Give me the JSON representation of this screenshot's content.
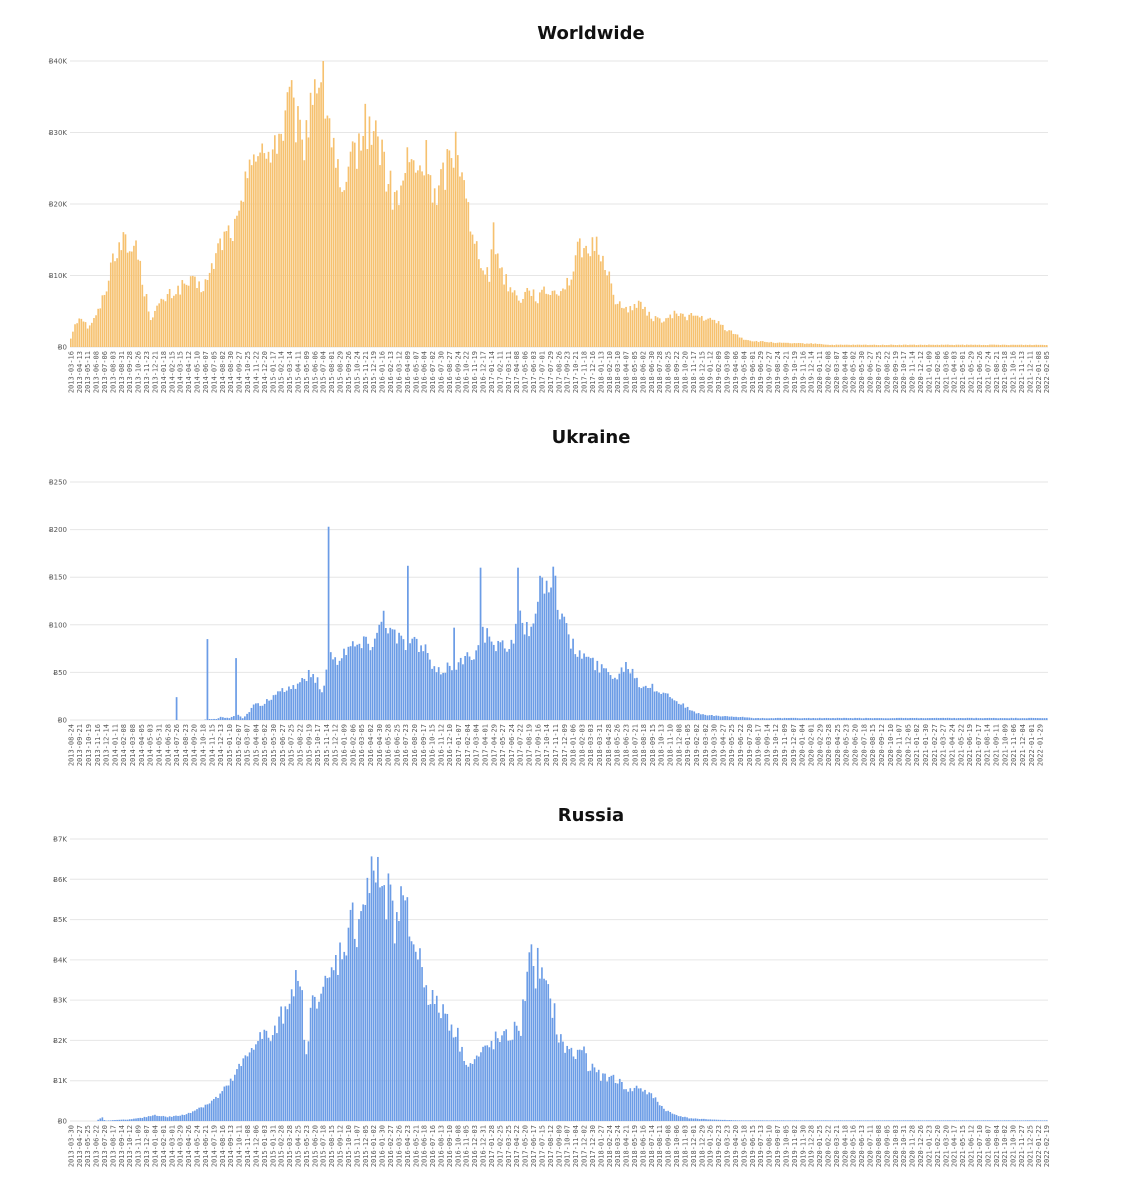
{
  "chart_data": [
    {
      "type": "bar",
      "title": "Worldwide",
      "xlabel": "",
      "ylabel": "",
      "ylim": [
        0,
        40000
      ],
      "yticks": [
        "Ƀ0",
        "Ƀ10K",
        "Ƀ20K",
        "Ƀ30K",
        "Ƀ40K"
      ],
      "color": "#f6c16f",
      "start_date": "2013-03-16",
      "end_date": "2022-02-05",
      "xtick_every_weeks": 4,
      "profile": [
        [
          0,
          1200
        ],
        [
          2,
          3400
        ],
        [
          5,
          4300
        ],
        [
          8,
          2800
        ],
        [
          12,
          4200
        ],
        [
          16,
          7400
        ],
        [
          20,
          12500
        ],
        [
          24,
          15300
        ],
        [
          28,
          13200
        ],
        [
          31,
          14700
        ],
        [
          34,
          9200
        ],
        [
          38,
          4200
        ],
        [
          42,
          5800
        ],
        [
          46,
          7100
        ],
        [
          50,
          7800
        ],
        [
          54,
          8700
        ],
        [
          58,
          9000
        ],
        [
          62,
          8200
        ],
        [
          66,
          9800
        ],
        [
          70,
          13800
        ],
        [
          74,
          15900
        ],
        [
          78,
          16500
        ],
        [
          82,
          19500
        ],
        [
          84,
          25200
        ],
        [
          86,
          28800
        ],
        [
          88,
          27200
        ],
        [
          92,
          25800
        ],
        [
          96,
          29000
        ],
        [
          100,
          29500
        ],
        [
          104,
          34300
        ],
        [
          107,
          31500
        ],
        [
          110,
          27300
        ],
        [
          114,
          34200
        ],
        [
          117,
          38600
        ],
        [
          120,
          36200
        ],
        [
          123,
          31500
        ],
        [
          126,
          26300
        ],
        [
          128,
          21200
        ],
        [
          131,
          20800
        ],
        [
          134,
          26800
        ],
        [
          138,
          29300
        ],
        [
          142,
          31600
        ],
        [
          145,
          29200
        ],
        [
          148,
          27800
        ],
        [
          150,
          23800
        ],
        [
          153,
          21200
        ],
        [
          156,
          20300
        ],
        [
          158,
          23400
        ],
        [
          160,
          25800
        ],
        [
          163,
          25000
        ],
        [
          167,
          24900
        ],
        [
          170,
          26800
        ],
        [
          172,
          21800
        ],
        [
          174,
          19900
        ],
        [
          177,
          24200
        ],
        [
          180,
          26100
        ],
        [
          183,
          28400
        ],
        [
          186,
          25800
        ],
        [
          188,
          22900
        ],
        [
          190,
          15600
        ],
        [
          193,
          13900
        ],
        [
          196,
          11800
        ],
        [
          199,
          10100
        ],
        [
          201,
          15700
        ],
        [
          203,
          12800
        ],
        [
          206,
          9800
        ],
        [
          210,
          7800
        ],
        [
          214,
          6800
        ],
        [
          218,
          8300
        ],
        [
          222,
          6800
        ],
        [
          226,
          7800
        ],
        [
          230,
          7700
        ],
        [
          234,
          8400
        ],
        [
          238,
          9800
        ],
        [
          240,
          11800
        ],
        [
          242,
          14600
        ],
        [
          244,
          13800
        ],
        [
          246,
          11700
        ],
        [
          248,
          14700
        ],
        [
          250,
          14100
        ],
        [
          252,
          13200
        ],
        [
          255,
          11100
        ],
        [
          258,
          7200
        ],
        [
          262,
          5300
        ],
        [
          266,
          5500
        ],
        [
          270,
          6100
        ],
        [
          274,
          4700
        ],
        [
          278,
          3900
        ],
        [
          282,
          3800
        ],
        [
          286,
          4200
        ],
        [
          288,
          4900
        ],
        [
          292,
          4200
        ],
        [
          296,
          4400
        ],
        [
          300,
          4100
        ],
        [
          304,
          3700
        ],
        [
          308,
          3400
        ],
        [
          312,
          2400
        ],
        [
          316,
          1800
        ],
        [
          320,
          1100
        ],
        [
          325,
          800
        ],
        [
          331,
          700
        ],
        [
          338,
          550
        ],
        [
          356,
          450
        ],
        [
          360,
          300
        ]
      ]
    },
    {
      "type": "bar",
      "title": "Ukraine",
      "xlabel": "",
      "ylabel": "",
      "ylim": [
        0,
        250
      ],
      "yticks": [
        "Ƀ0",
        "Ƀ50",
        "Ƀ100",
        "Ƀ150",
        "Ƀ200",
        "Ƀ250"
      ],
      "color": "#6b9ce6",
      "start_date": "2013-08-24",
      "end_date": "2022-02-19",
      "xtick_every_weeks": 4,
      "spikes": [
        [
          48,
          24
        ],
        [
          62,
          85
        ],
        [
          75,
          65
        ],
        [
          117,
          203
        ],
        [
          153,
          162
        ],
        [
          174,
          97
        ],
        [
          186,
          160
        ],
        [
          203,
          160
        ]
      ],
      "profile": [
        [
          0,
          0
        ],
        [
          60,
          0
        ],
        [
          62,
          1
        ],
        [
          66,
          1
        ],
        [
          68,
          3
        ],
        [
          72,
          2
        ],
        [
          74,
          4
        ],
        [
          76,
          6
        ],
        [
          78,
          2
        ],
        [
          80,
          6
        ],
        [
          82,
          12
        ],
        [
          84,
          18
        ],
        [
          86,
          14
        ],
        [
          90,
          22
        ],
        [
          94,
          27
        ],
        [
          98,
          33
        ],
        [
          102,
          36
        ],
        [
          106,
          44
        ],
        [
          108,
          48
        ],
        [
          112,
          42
        ],
        [
          114,
          28
        ],
        [
          116,
          52
        ],
        [
          118,
          68
        ],
        [
          120,
          62
        ],
        [
          124,
          75
        ],
        [
          128,
          78
        ],
        [
          132,
          80
        ],
        [
          136,
          82
        ],
        [
          140,
          96
        ],
        [
          142,
          115
        ],
        [
          145,
          95
        ],
        [
          148,
          88
        ],
        [
          150,
          83
        ],
        [
          154,
          84
        ],
        [
          158,
          78
        ],
        [
          162,
          70
        ],
        [
          164,
          55
        ],
        [
          166,
          48
        ],
        [
          170,
          55
        ],
        [
          174,
          58
        ],
        [
          176,
          60
        ],
        [
          180,
          65
        ],
        [
          183,
          72
        ],
        [
          186,
          95
        ],
        [
          190,
          85
        ],
        [
          192,
          78
        ],
        [
          196,
          75
        ],
        [
          200,
          80
        ],
        [
          202,
          100
        ],
        [
          205,
          110
        ],
        [
          208,
          85
        ],
        [
          210,
          95
        ],
        [
          212,
          138
        ],
        [
          215,
          148
        ],
        [
          217,
          152
        ],
        [
          220,
          140
        ],
        [
          222,
          120
        ],
        [
          224,
          100
        ],
        [
          226,
          88
        ],
        [
          229,
          72
        ],
        [
          233,
          68
        ],
        [
          236,
          62
        ],
        [
          240,
          55
        ],
        [
          243,
          52
        ],
        [
          246,
          49
        ],
        [
          248,
          45
        ],
        [
          252,
          60
        ],
        [
          255,
          52
        ],
        [
          258,
          38
        ],
        [
          262,
          36
        ],
        [
          266,
          32
        ],
        [
          270,
          28
        ],
        [
          274,
          22
        ],
        [
          278,
          16
        ],
        [
          282,
          9
        ],
        [
          286,
          6
        ],
        [
          290,
          5
        ],
        [
          294,
          4
        ],
        [
          298,
          4
        ],
        [
          302,
          3
        ],
        [
          306,
          3
        ],
        [
          310,
          2
        ],
        [
          318,
          2
        ],
        [
          341,
          2
        ]
      ]
    },
    {
      "type": "bar",
      "title": "Russia",
      "xlabel": "",
      "ylabel": "",
      "ylim": [
        0,
        7000
      ],
      "yticks": [
        "Ƀ0",
        "Ƀ1K",
        "Ƀ2K",
        "Ƀ3K",
        "Ƀ4K",
        "Ƀ5K",
        "Ƀ6K",
        "Ƀ7K"
      ],
      "color": "#6b9ce6",
      "start_date": "2013-03-30",
      "end_date": "2022-02-19",
      "xtick_every_weeks": 4,
      "spikes": [
        [
          15,
          90
        ]
      ],
      "profile": [
        [
          0,
          0
        ],
        [
          12,
          0
        ],
        [
          14,
          60
        ],
        [
          17,
          10
        ],
        [
          20,
          20
        ],
        [
          28,
          40
        ],
        [
          34,
          80
        ],
        [
          40,
          150
        ],
        [
          46,
          100
        ],
        [
          54,
          150
        ],
        [
          60,
          300
        ],
        [
          66,
          450
        ],
        [
          70,
          600
        ],
        [
          76,
          950
        ],
        [
          80,
          1300
        ],
        [
          84,
          1600
        ],
        [
          88,
          2050
        ],
        [
          92,
          2100
        ],
        [
          96,
          2050
        ],
        [
          98,
          2300
        ],
        [
          102,
          2800
        ],
        [
          106,
          3500
        ],
        [
          110,
          3000
        ],
        [
          112,
          1500
        ],
        [
          114,
          2700
        ],
        [
          118,
          3300
        ],
        [
          122,
          3300
        ],
        [
          126,
          3900
        ],
        [
          130,
          4400
        ],
        [
          134,
          5000
        ],
        [
          136,
          4800
        ],
        [
          138,
          5300
        ],
        [
          142,
          5800
        ],
        [
          146,
          6350
        ],
        [
          148,
          5700
        ],
        [
          150,
          5100
        ],
        [
          152,
          6650
        ],
        [
          154,
          5000
        ],
        [
          156,
          5300
        ],
        [
          158,
          5200
        ],
        [
          160,
          5000
        ],
        [
          162,
          4600
        ],
        [
          166,
          4000
        ],
        [
          170,
          3200
        ],
        [
          174,
          2800
        ],
        [
          178,
          2700
        ],
        [
          182,
          2300
        ],
        [
          184,
          2100
        ],
        [
          186,
          1700
        ],
        [
          190,
          1400
        ],
        [
          194,
          1600
        ],
        [
          198,
          1800
        ],
        [
          202,
          2000
        ],
        [
          206,
          2000
        ],
        [
          210,
          2200
        ],
        [
          214,
          2300
        ],
        [
          216,
          3200
        ],
        [
          218,
          4500
        ],
        [
          220,
          3500
        ],
        [
          222,
          3900
        ],
        [
          226,
          3200
        ],
        [
          230,
          2700
        ],
        [
          232,
          2000
        ],
        [
          236,
          1800
        ],
        [
          240,
          1600
        ],
        [
          244,
          1900
        ],
        [
          246,
          1400
        ],
        [
          250,
          1200
        ],
        [
          254,
          1050
        ],
        [
          258,
          1100
        ],
        [
          262,
          900
        ],
        [
          266,
          750
        ],
        [
          270,
          850
        ],
        [
          274,
          700
        ],
        [
          278,
          550
        ],
        [
          282,
          300
        ],
        [
          286,
          180
        ],
        [
          290,
          120
        ],
        [
          294,
          70
        ],
        [
          300,
          50
        ],
        [
          308,
          30
        ],
        [
          318,
          15
        ],
        [
          412,
          15
        ]
      ]
    }
  ]
}
